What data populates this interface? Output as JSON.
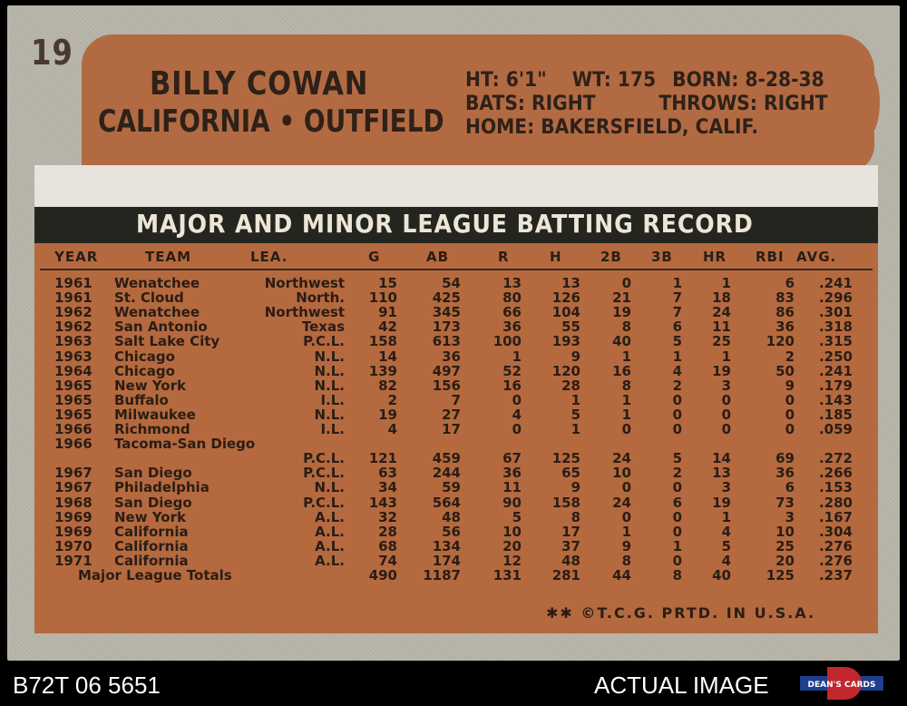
{
  "card": {
    "number": "19",
    "player_name": "BILLY COWAN",
    "team_position": "CALIFORNIA • OUTFIELD",
    "bio": {
      "height": "HT: 6'1\"",
      "weight": "WT: 175",
      "born": "BORN: 8-28-38",
      "bats": "BATS: RIGHT",
      "throws": "THROWS: RIGHT",
      "home": "HOME: BAKERSFIELD, CALIF."
    },
    "section_title": "MAJOR AND MINOR LEAGUE BATTING RECORD",
    "columns": [
      "YEAR",
      "TEAM",
      "LEA.",
      "G",
      "AB",
      "R",
      "H",
      "2B",
      "3B",
      "HR",
      "RBI",
      "AVG."
    ],
    "rows": [
      [
        "1961",
        "Wenatchee",
        "Northwest",
        "15",
        "54",
        "13",
        "13",
        "0",
        "1",
        "1",
        "6",
        ".241"
      ],
      [
        "1961",
        "St. Cloud",
        "North.",
        "110",
        "425",
        "80",
        "126",
        "21",
        "7",
        "18",
        "83",
        ".296"
      ],
      [
        "1962",
        "Wenatchee",
        "Northwest",
        "91",
        "345",
        "66",
        "104",
        "19",
        "7",
        "24",
        "86",
        ".301"
      ],
      [
        "1962",
        "San Antonio",
        "Texas",
        "42",
        "173",
        "36",
        "55",
        "8",
        "6",
        "11",
        "36",
        ".318"
      ],
      [
        "1963",
        "Salt Lake City",
        "P.C.L.",
        "158",
        "613",
        "100",
        "193",
        "40",
        "5",
        "25",
        "120",
        ".315"
      ],
      [
        "1963",
        "Chicago",
        "N.L.",
        "14",
        "36",
        "1",
        "9",
        "1",
        "1",
        "1",
        "2",
        ".250"
      ],
      [
        "1964",
        "Chicago",
        "N.L.",
        "139",
        "497",
        "52",
        "120",
        "16",
        "4",
        "19",
        "50",
        ".241"
      ],
      [
        "1965",
        "New York",
        "N.L.",
        "82",
        "156",
        "16",
        "28",
        "8",
        "2",
        "3",
        "9",
        ".179"
      ],
      [
        "1965",
        "Buffalo",
        "I.L.",
        "2",
        "7",
        "0",
        "1",
        "1",
        "0",
        "0",
        "0",
        ".143"
      ],
      [
        "1965",
        "Milwaukee",
        "N.L.",
        "19",
        "27",
        "4",
        "5",
        "1",
        "0",
        "0",
        "0",
        ".185"
      ],
      [
        "1966",
        "Richmond",
        "I.L.",
        "4",
        "17",
        "0",
        "1",
        "0",
        "0",
        "0",
        "0",
        ".059"
      ],
      [
        "1966",
        "Tacoma-San Diego",
        "",
        "",
        "",
        "",
        "",
        "",
        "",
        "",
        "",
        ""
      ],
      [
        "",
        "",
        "P.C.L.",
        "121",
        "459",
        "67",
        "125",
        "24",
        "5",
        "14",
        "69",
        ".272"
      ],
      [
        "1967",
        "San Diego",
        "P.C.L.",
        "63",
        "244",
        "36",
        "65",
        "10",
        "2",
        "13",
        "36",
        ".266"
      ],
      [
        "1967",
        "Philadelphia",
        "N.L.",
        "34",
        "59",
        "11",
        "9",
        "0",
        "0",
        "3",
        "6",
        ".153"
      ],
      [
        "1968",
        "San Diego",
        "P.C.L.",
        "143",
        "564",
        "90",
        "158",
        "24",
        "6",
        "19",
        "73",
        ".280"
      ],
      [
        "1969",
        "New York",
        "A.L.",
        "32",
        "48",
        "5",
        "8",
        "0",
        "0",
        "1",
        "3",
        ".167"
      ],
      [
        "1969",
        "California",
        "A.L.",
        "28",
        "56",
        "10",
        "17",
        "1",
        "0",
        "4",
        "10",
        ".304"
      ],
      [
        "1970",
        "California",
        "A.L.",
        "68",
        "134",
        "20",
        "37",
        "9",
        "1",
        "5",
        "25",
        ".276"
      ],
      [
        "1971",
        "California",
        "A.L.",
        "74",
        "174",
        "12",
        "48",
        "8",
        "0",
        "4",
        "20",
        ".276"
      ],
      [
        "",
        "Major League Totals",
        "",
        "490",
        "1187",
        "131",
        "281",
        "44",
        "8",
        "40",
        "125",
        ".237"
      ]
    ],
    "footer": "✱✱ ©T.C.G. PRTD. IN U.S.A."
  },
  "caption": {
    "code": "B72T 06 5651",
    "label": "ACTUAL IMAGE",
    "logo_text": "DEAN'S CARDS"
  },
  "colors": {
    "header_brown": "#b26a43",
    "table_brown": "#b5693f",
    "border_gray": "#b7b4a8",
    "title_bar": "#25251f"
  }
}
